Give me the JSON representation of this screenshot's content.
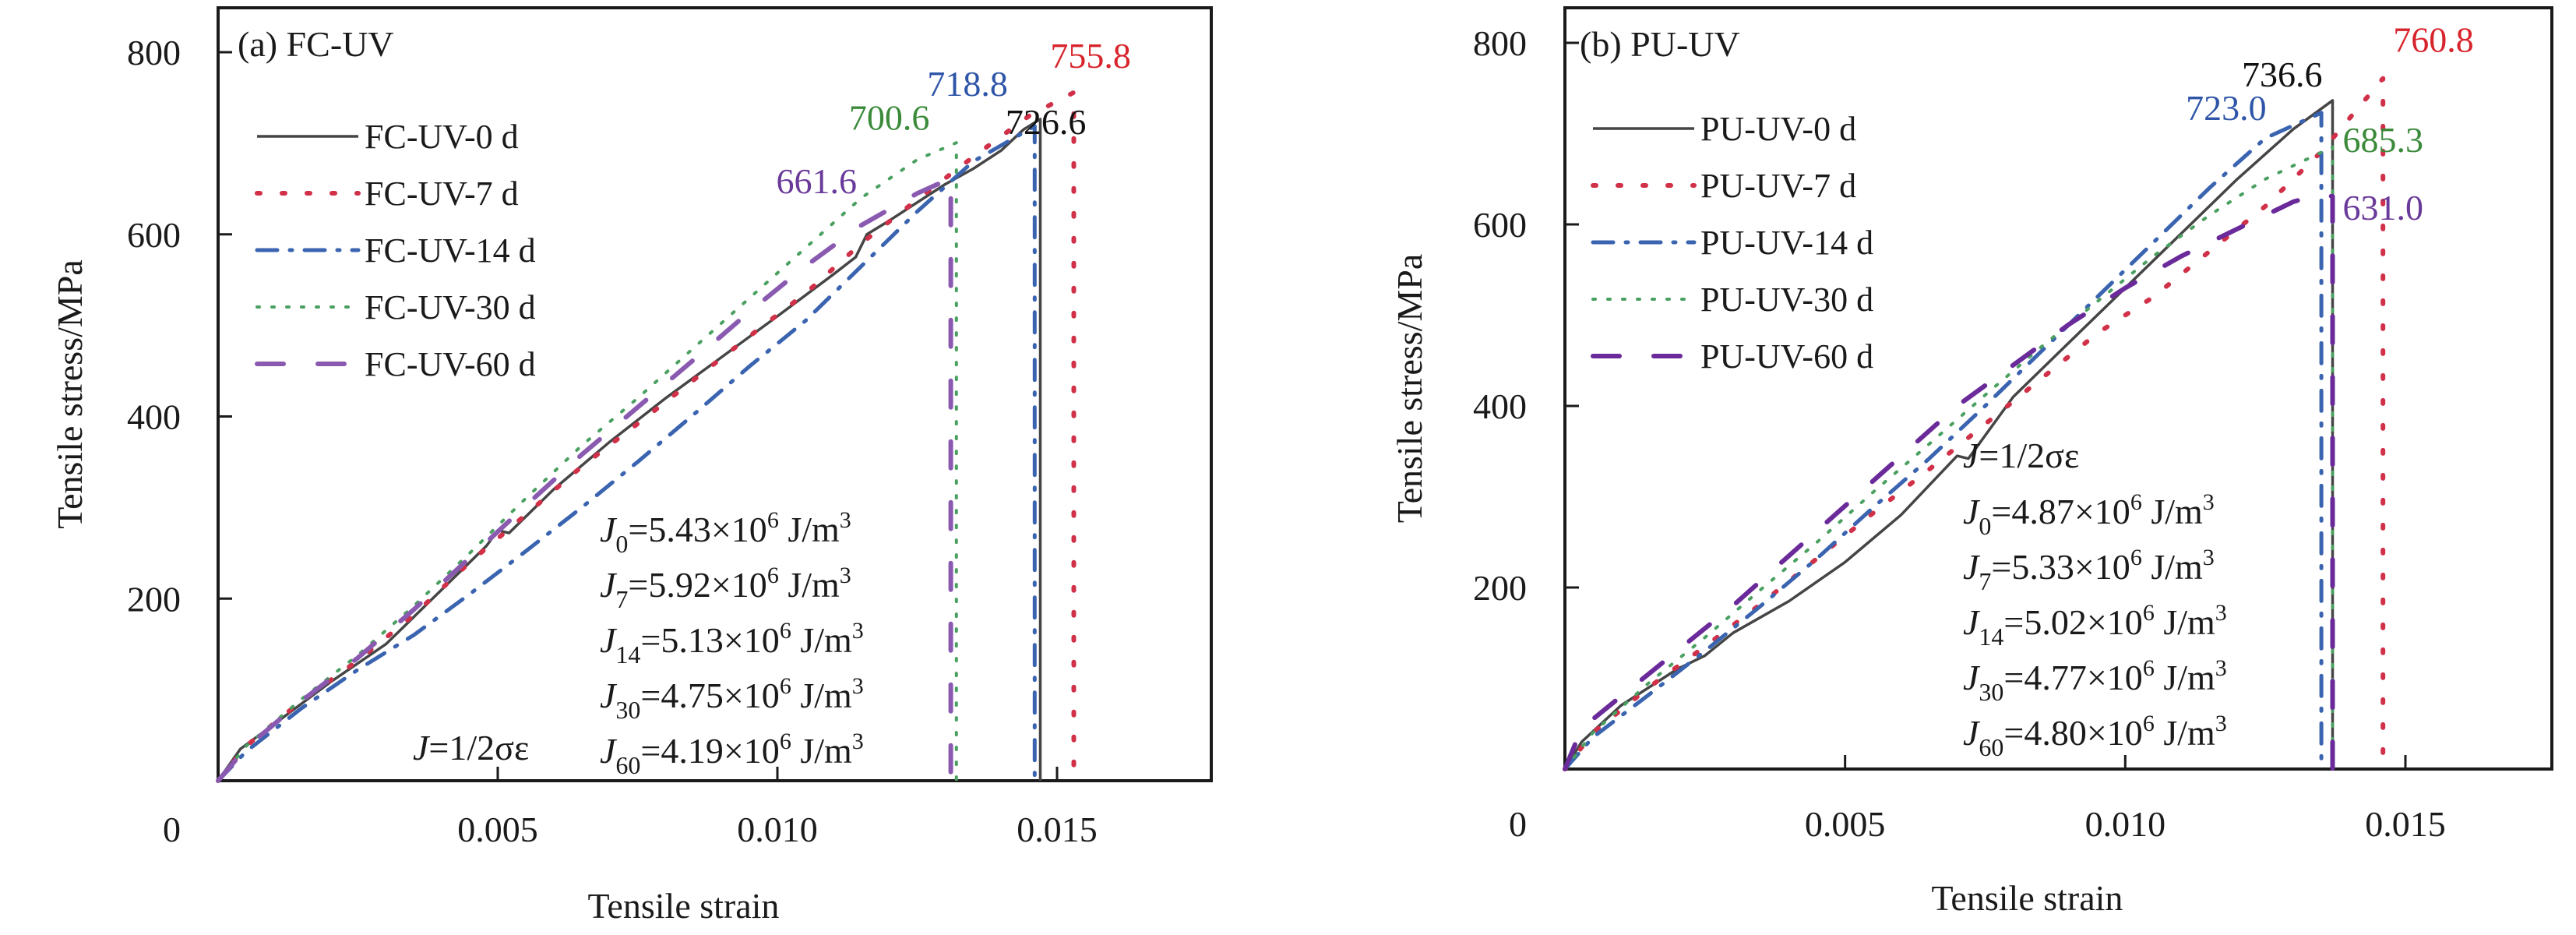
{
  "chart_data": [
    {
      "type": "line",
      "panel_title": "(a) FC-UV",
      "xlabel": "Tensile strain",
      "ylabel": "Tensile stress/MPa",
      "xlim": [
        0,
        0.0175
      ],
      "ylim": [
        0,
        850
      ],
      "xticks": [
        0,
        0.005,
        0.01,
        0.015
      ],
      "xtick_labels": [
        "0",
        "0.005",
        "0.010",
        "0.015"
      ],
      "yticks": [
        0,
        200,
        400,
        600,
        800
      ],
      "ytick_labels": [
        "0",
        "200",
        "400",
        "600",
        "800"
      ],
      "grid": false,
      "legend_position": "top-left",
      "series": [
        {
          "name": "FC-UV-0 d",
          "color": "#454545",
          "style": "solid",
          "x": [
            0,
            0.0004,
            0.001,
            0.002,
            0.003,
            0.0032,
            0.004,
            0.0048,
            0.005,
            0.0052,
            0.006,
            0.007,
            0.008,
            0.009,
            0.01,
            0.011,
            0.0114,
            0.0116,
            0.012,
            0.0125,
            0.013,
            0.0135,
            0.014,
            0.0144,
            0.0147,
            0.0147
          ],
          "y": [
            0,
            35,
            62,
            108,
            150,
            162,
            210,
            258,
            275,
            272,
            320,
            372,
            420,
            465,
            510,
            556,
            575,
            600,
            615,
            635,
            655,
            672,
            692,
            715,
            726.6,
            0
          ]
        },
        {
          "name": "FC-UV-7 d",
          "color": "#d03048",
          "style": "dotted",
          "x": [
            0,
            0.0005,
            0.0015,
            0.0025,
            0.0035,
            0.0045,
            0.0055,
            0.0065,
            0.0075,
            0.0085,
            0.0095,
            0.0105,
            0.0115,
            0.0125,
            0.0135,
            0.0145,
            0.0153,
            0.0153
          ],
          "y": [
            0,
            38,
            88,
            132,
            182,
            240,
            292,
            345,
            392,
            440,
            488,
            535,
            590,
            638,
            685,
            730,
            755.8,
            0
          ]
        },
        {
          "name": "FC-UV-14 d",
          "color": "#3a64b0",
          "style": "dashdot",
          "x": [
            0,
            0.0005,
            0.0015,
            0.0025,
            0.0035,
            0.0045,
            0.0055,
            0.0065,
            0.0075,
            0.0085,
            0.0095,
            0.0105,
            0.0115,
            0.0125,
            0.0135,
            0.0146,
            0.0146
          ],
          "y": [
            0,
            32,
            80,
            122,
            160,
            205,
            252,
            300,
            350,
            402,
            455,
            505,
            565,
            625,
            680,
            718.8,
            0
          ]
        },
        {
          "name": "FC-UV-30 d",
          "color": "#4aa060",
          "style": "dotted-fine",
          "x": [
            0,
            0.0005,
            0.0015,
            0.0025,
            0.0035,
            0.0045,
            0.0055,
            0.0065,
            0.0075,
            0.0085,
            0.0095,
            0.0105,
            0.0115,
            0.0125,
            0.0132,
            0.0132
          ],
          "y": [
            0,
            38,
            90,
            138,
            192,
            250,
            310,
            368,
            420,
            475,
            530,
            585,
            640,
            682,
            700.6,
            0
          ]
        },
        {
          "name": "FC-UV-60 d",
          "color": "#8a5ab0",
          "style": "dashed",
          "x": [
            0,
            0.0005,
            0.0015,
            0.0025,
            0.0035,
            0.0045,
            0.0055,
            0.0065,
            0.0075,
            0.0085,
            0.0095,
            0.0105,
            0.0115,
            0.0125,
            0.0131,
            0.0131
          ],
          "y": [
            0,
            36,
            88,
            135,
            188,
            245,
            302,
            358,
            410,
            462,
            515,
            565,
            610,
            645,
            661.6,
            0
          ]
        }
      ],
      "annotations": [
        {
          "text": "755.8",
          "color": "#d8242c",
          "x": 0.0156,
          "y": 783
        },
        {
          "text": "718.8",
          "color": "#2e55a8",
          "x": 0.0134,
          "y": 752
        },
        {
          "text": "726.6",
          "color": "#111111",
          "x": 0.0148,
          "y": 710
        },
        {
          "text": "700.6",
          "color": "#3a8a3a",
          "x": 0.012,
          "y": 715
        },
        {
          "text": "661.6",
          "color": "#6a3a9a",
          "x": 0.0107,
          "y": 645
        }
      ],
      "formulas": [
        {
          "symbol": "J",
          "sub": "0",
          "value": "=5.43×10",
          "exp": "6",
          "unit": " J/m",
          "unit_exp": "3"
        },
        {
          "symbol": "J",
          "sub": "7",
          "value": "=5.92×10",
          "exp": "6",
          "unit": " J/m",
          "unit_exp": "3"
        },
        {
          "symbol": "J",
          "sub": "14",
          "value": "=5.13×10",
          "exp": "6",
          "unit": " J/m",
          "unit_exp": "3"
        },
        {
          "symbol": "J",
          "sub": "30",
          "value": "=4.75×10",
          "exp": "6",
          "unit": " J/m",
          "unit_exp": "3"
        },
        {
          "symbol": "J",
          "sub": "60",
          "value": "=4.19×10",
          "exp": "6",
          "unit": " J/m",
          "unit_exp": "3"
        }
      ],
      "definition": {
        "symbol": "J",
        "text": "=1/2σε"
      }
    },
    {
      "type": "line",
      "panel_title": "(b) PU-UV",
      "xlabel": "Tensile strain",
      "ylabel": "Tensile stress/MPa",
      "xlim": [
        0,
        0.0175
      ],
      "ylim": [
        0,
        850
      ],
      "xticks": [
        0,
        0.005,
        0.01,
        0.015
      ],
      "xtick_labels": [
        "0",
        "0.005",
        "0.010",
        "0.015"
      ],
      "yticks": [
        0,
        200,
        400,
        600,
        800
      ],
      "ytick_labels": [
        "0",
        "200",
        "400",
        "600",
        "800"
      ],
      "grid": false,
      "legend_position": "top-left",
      "series": [
        {
          "name": "PU-UV-0 d",
          "color": "#454545",
          "style": "solid",
          "x": [
            0,
            0.0003,
            0.001,
            0.002,
            0.0025,
            0.003,
            0.004,
            0.005,
            0.006,
            0.007,
            0.0072,
            0.008,
            0.009,
            0.01,
            0.011,
            0.012,
            0.013,
            0.0137,
            0.0137
          ],
          "y": [
            0,
            30,
            70,
            110,
            125,
            150,
            185,
            228,
            280,
            345,
            342,
            410,
            470,
            530,
            590,
            650,
            705,
            736.6,
            0
          ]
        },
        {
          "name": "PU-UV-7 d",
          "color": "#d03048",
          "style": "dotted",
          "x": [
            0,
            0.0005,
            0.0015,
            0.0025,
            0.0035,
            0.0045,
            0.0055,
            0.0065,
            0.0075,
            0.0085,
            0.0095,
            0.0105,
            0.0115,
            0.0125,
            0.0135,
            0.0146,
            0.0146
          ],
          "y": [
            0,
            40,
            90,
            135,
            182,
            232,
            282,
            330,
            380,
            430,
            480,
            520,
            570,
            620,
            680,
            760.8,
            0
          ]
        },
        {
          "name": "PU-UV-14 d",
          "color": "#3a64b0",
          "style": "dashdot",
          "x": [
            0,
            0.0005,
            0.0015,
            0.0025,
            0.0035,
            0.0045,
            0.0055,
            0.0065,
            0.0075,
            0.0085,
            0.0095,
            0.0105,
            0.0115,
            0.0125,
            0.0135,
            0.0135
          ],
          "y": [
            0,
            35,
            82,
            130,
            180,
            232,
            288,
            342,
            400,
            460,
            520,
            580,
            640,
            695,
            723.0,
            0
          ]
        },
        {
          "name": "PU-UV-30 d",
          "color": "#4aa060",
          "style": "dotted-fine",
          "x": [
            0,
            0.0005,
            0.0015,
            0.0025,
            0.0035,
            0.0045,
            0.0055,
            0.0065,
            0.0075,
            0.0085,
            0.0095,
            0.0105,
            0.0115,
            0.0125,
            0.0137,
            0.0137
          ],
          "y": [
            0,
            40,
            95,
            145,
            198,
            250,
            305,
            358,
            412,
            465,
            515,
            565,
            610,
            650,
            685.3,
            0
          ]
        },
        {
          "name": "PU-UV-60 d",
          "color": "#6a2a9a",
          "style": "dashed",
          "x": [
            0,
            0.0003,
            0.001,
            0.002,
            0.003,
            0.004,
            0.005,
            0.006,
            0.007,
            0.008,
            0.009,
            0.01,
            0.011,
            0.012,
            0.013,
            0.0134,
            0.0137,
            0.0137
          ],
          "y": [
            0,
            45,
            80,
            130,
            180,
            235,
            290,
            345,
            400,
            445,
            490,
            530,
            565,
            595,
            625,
            632,
            631.0,
            0
          ]
        }
      ],
      "annotations": [
        {
          "text": "760.8",
          "color": "#d8242c",
          "x": 0.0155,
          "y": 790
        },
        {
          "text": "736.6",
          "color": "#111111",
          "x": 0.0128,
          "y": 752
        },
        {
          "text": "723.0",
          "color": "#2e55a8",
          "x": 0.0118,
          "y": 715
        },
        {
          "text": "685.3",
          "color": "#3a8a3a",
          "x": 0.0146,
          "y": 680
        },
        {
          "text": "631.0",
          "color": "#6a3a9a",
          "x": 0.0146,
          "y": 605
        }
      ],
      "formulas": [
        {
          "symbol": "J",
          "sub": "0",
          "value": "=4.87×10",
          "exp": "6",
          "unit": " J/m",
          "unit_exp": "3"
        },
        {
          "symbol": "J",
          "sub": "7",
          "value": "=5.33×10",
          "exp": "6",
          "unit": " J/m",
          "unit_exp": "3"
        },
        {
          "symbol": "J",
          "sub": "14",
          "value": "=5.02×10",
          "exp": "6",
          "unit": " J/m",
          "unit_exp": "3"
        },
        {
          "symbol": "J",
          "sub": "30",
          "value": "=4.77×10",
          "exp": "6",
          "unit": " J/m",
          "unit_exp": "3"
        },
        {
          "symbol": "J",
          "sub": "60",
          "value": "=4.80×10",
          "exp": "6",
          "unit": " J/m",
          "unit_exp": "3"
        }
      ],
      "definition": {
        "symbol": "J",
        "text": "=1/2σε"
      }
    }
  ]
}
